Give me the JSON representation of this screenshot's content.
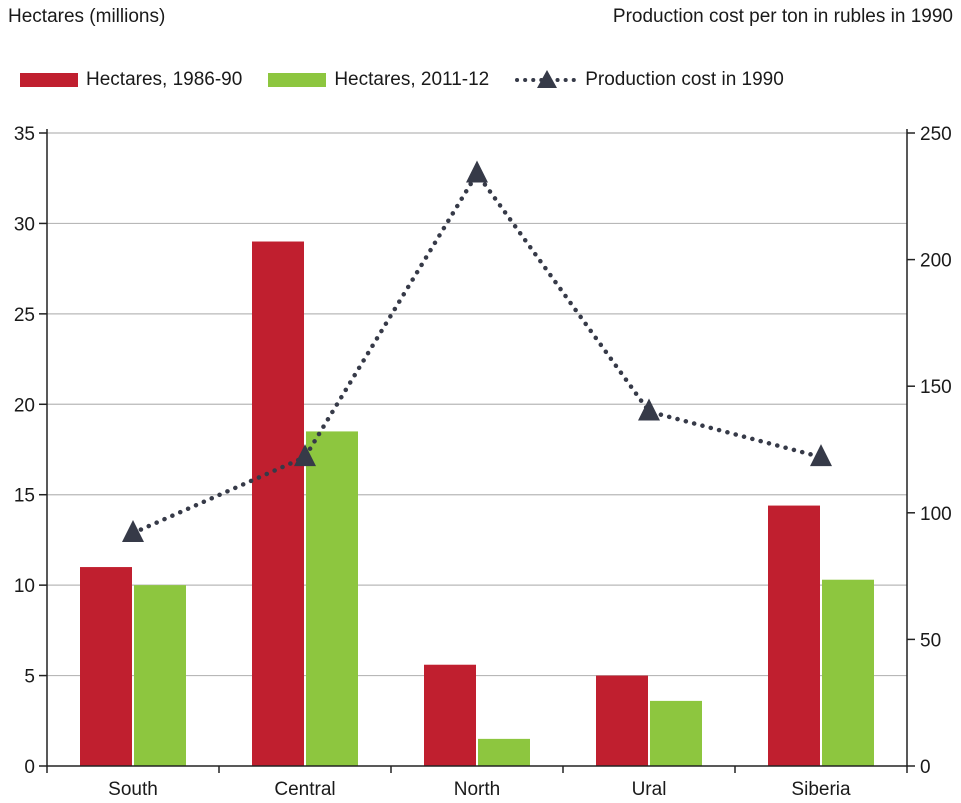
{
  "chart_data": {
    "type": "bar",
    "categories": [
      "South",
      "Central",
      "North",
      "Ural",
      "Siberia"
    ],
    "series": [
      {
        "name": "Hectares, 1986-90",
        "kind": "bar",
        "axis": "left",
        "color": "#c01f2f",
        "values": [
          11.0,
          29.0,
          5.6,
          5.0,
          14.4
        ]
      },
      {
        "name": "Hectares, 2011-12",
        "kind": "bar",
        "axis": "left",
        "color": "#8dc63f",
        "values": [
          10.0,
          18.5,
          1.5,
          3.6,
          10.3
        ]
      },
      {
        "name": "Production cost in 1990",
        "kind": "line",
        "axis": "right",
        "color": "#363a48",
        "line_style": "dotted",
        "marker": "triangle",
        "values": [
          92,
          122,
          234,
          140,
          122
        ]
      }
    ],
    "ylabel": "Hectares (millions)",
    "y2label": "Production cost per ton in rubles in 1990",
    "ylim": [
      0,
      35
    ],
    "y2lim": [
      0,
      250
    ],
    "yticks": [
      "0",
      "5",
      "10",
      "15",
      "20",
      "25",
      "30",
      "35"
    ],
    "y2ticks": [
      "0",
      "50",
      "100",
      "150",
      "200",
      "250"
    ],
    "grid": true,
    "legend_position": "top"
  }
}
